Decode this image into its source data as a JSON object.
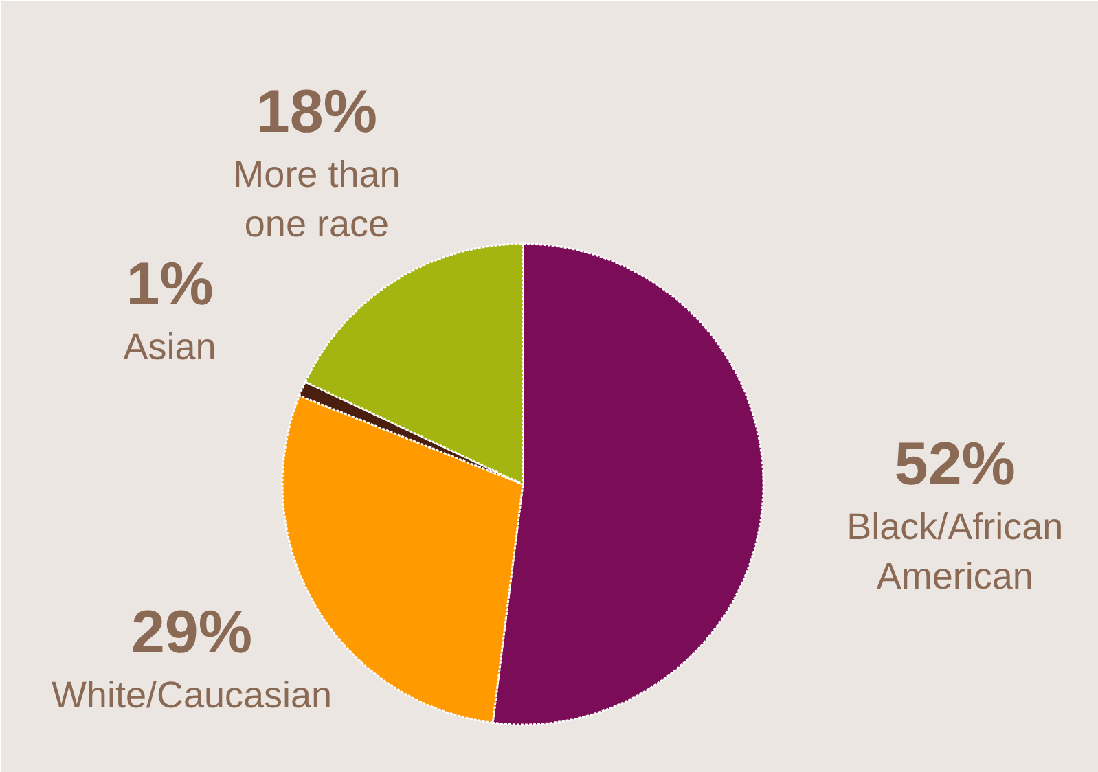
{
  "chart_data": {
    "type": "pie",
    "categories": [
      "Black/African American",
      "White/Caucasian",
      "Asian",
      "More than one race"
    ],
    "values": [
      52,
      29,
      1,
      18
    ],
    "value_labels": [
      "52%",
      "29%",
      "1%",
      "18%"
    ],
    "colors": [
      "#7b0c57",
      "#ff9a00",
      "#4a1f0f",
      "#a4b512"
    ]
  }
}
